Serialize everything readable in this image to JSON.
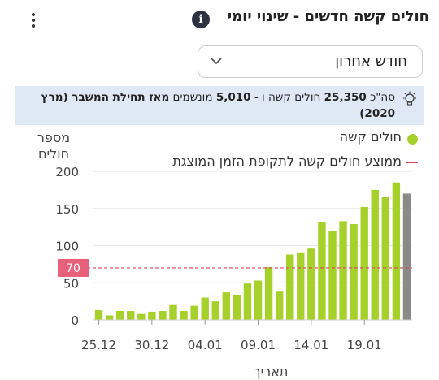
{
  "header": {
    "title": "חולים קשה חדשים - שינוי יומי",
    "info_icon": "i"
  },
  "dropdown": {
    "selected": "חודש אחרון"
  },
  "banner": {
    "prefix": "סה\"כ",
    "total_severe": "25,350",
    "severe_text": "חולים קשה ו -",
    "ventilated": "5,010",
    "ventilated_text": "מונשמים",
    "since_text": "מאז תחילת המשבר (מרץ 2020)"
  },
  "legend": {
    "series_label": "חולים קשה",
    "average_label": "ממוצע חולים קשה לתקופת הזמן המוצגת"
  },
  "colors": {
    "bar": "#a6d12a",
    "last_bar": "#8a8a8a",
    "average_line": "#d9425b",
    "average_badge": "#e8607a"
  },
  "chart_data": {
    "type": "bar",
    "ylabel": "מספר חולים",
    "xlabel": "תאריך",
    "ylim": [
      0,
      200
    ],
    "yticks": [
      0,
      50,
      100,
      150,
      200
    ],
    "xtick_labels": [
      "25.12",
      "30.12",
      "04.01",
      "09.01",
      "14.01",
      "19.01"
    ],
    "xtick_indices": [
      0,
      5,
      10,
      15,
      20,
      25
    ],
    "values": [
      13,
      6,
      12,
      12,
      8,
      11,
      12,
      20,
      12,
      19,
      30,
      25,
      37,
      34,
      49,
      53,
      71,
      38,
      88,
      91,
      96,
      132,
      120,
      133,
      129,
      152,
      175,
      165,
      185,
      170
    ],
    "last_bar_partial": true,
    "average": 70,
    "average_label": "70"
  }
}
